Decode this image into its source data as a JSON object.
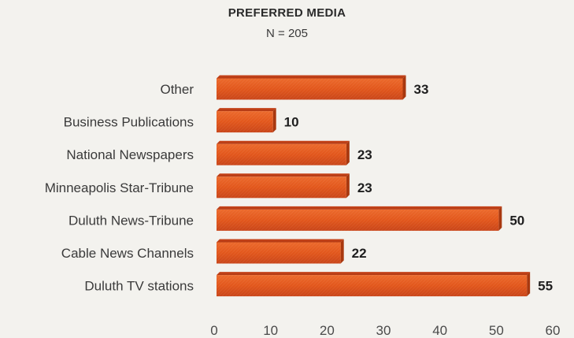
{
  "chart_data": {
    "type": "bar",
    "orientation": "horizontal",
    "title": "PREFERRED MEDIA",
    "subtitle": "N = 205",
    "categories": [
      "Other",
      "Business Publications",
      "National Newspapers",
      "Minneapolis Star-Tribune",
      "Duluth News-Tribune",
      "Cable News Channels",
      "Duluth TV stations"
    ],
    "values": [
      33,
      10,
      23,
      23,
      50,
      22,
      55
    ],
    "xlim": [
      0,
      60
    ],
    "xticks": [
      "0",
      "10",
      "20",
      "30",
      "40",
      "50",
      "60"
    ],
    "xlabel": "",
    "ylabel": "",
    "grid": false,
    "legend": "none",
    "bar_color": "#e2571c"
  }
}
